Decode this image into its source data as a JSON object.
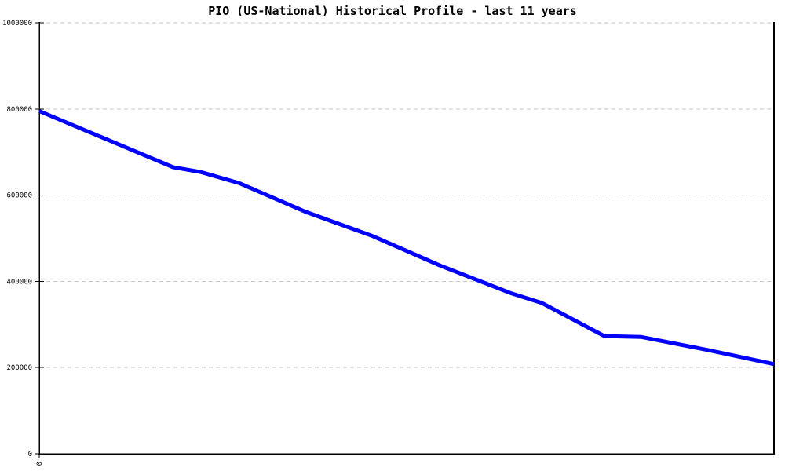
{
  "chart_data": {
    "type": "line",
    "title": "PIO (US-National) Historical Profile - last 11 years",
    "x_axis": {
      "visible_tick_labels": [
        "0"
      ],
      "labels_rotated": true,
      "span_years": 11
    },
    "y_axis": {
      "min": 0,
      "max": 1000000,
      "tick_interval": 200000,
      "tick_labels": [
        "0",
        "200000",
        "400000",
        "600000",
        "800000",
        "1000000"
      ]
    },
    "grid": {
      "horizontal_dotted": true,
      "color": "#c6c6c6"
    },
    "axis_color": "#000000",
    "background_color": "#ffffff",
    "series": [
      {
        "name": "PIO (US-National)",
        "color": "#0000ff",
        "line_width": 5,
        "points": [
          {
            "x_frac": 0.0,
            "value": 795000
          },
          {
            "x_frac": 0.091,
            "value": 730000
          },
          {
            "x_frac": 0.182,
            "value": 665000
          },
          {
            "x_frac": 0.219,
            "value": 654000
          },
          {
            "x_frac": 0.272,
            "value": 628000
          },
          {
            "x_frac": 0.363,
            "value": 561000
          },
          {
            "x_frac": 0.454,
            "value": 505000
          },
          {
            "x_frac": 0.545,
            "value": 437000
          },
          {
            "x_frac": 0.641,
            "value": 373000
          },
          {
            "x_frac": 0.684,
            "value": 350000
          },
          {
            "x_frac": 0.769,
            "value": 273000
          },
          {
            "x_frac": 0.819,
            "value": 271000
          },
          {
            "x_frac": 0.909,
            "value": 241000
          },
          {
            "x_frac": 1.0,
            "value": 208000
          }
        ]
      }
    ]
  }
}
